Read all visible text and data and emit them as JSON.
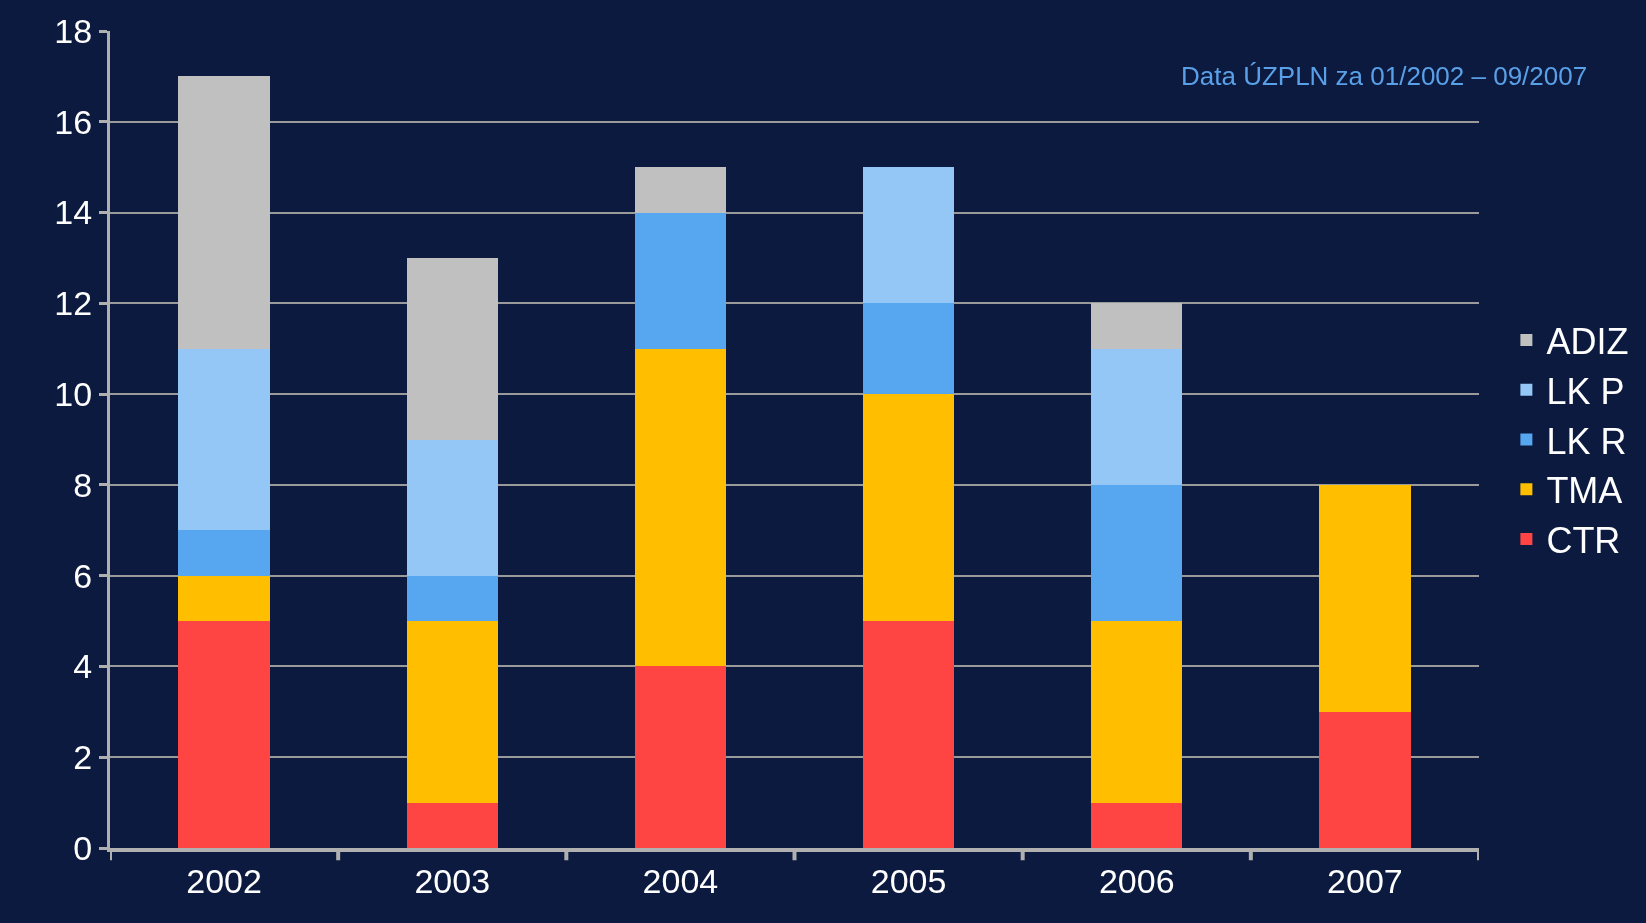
{
  "chart_data": {
    "type": "bar",
    "stacked": true,
    "categories": [
      "2002",
      "2003",
      "2004",
      "2005",
      "2006",
      "2007"
    ],
    "series": [
      {
        "name": "CTR",
        "color": "#ff4444",
        "values": [
          5,
          1,
          4,
          5,
          1,
          3
        ]
      },
      {
        "name": "TMA",
        "color": "#ffbf00",
        "values": [
          1,
          4,
          7,
          5,
          4,
          5
        ]
      },
      {
        "name": "LK R",
        "color": "#56a6f0",
        "values": [
          1,
          1,
          3,
          2,
          3,
          0
        ]
      },
      {
        "name": "LK P",
        "color": "#94c6f6",
        "values": [
          4,
          3,
          0,
          3,
          3,
          0
        ]
      },
      {
        "name": "ADIZ",
        "color": "#c0c0c0",
        "values": [
          6,
          4,
          1,
          0,
          1,
          0
        ]
      }
    ],
    "ylim": [
      0,
      18
    ],
    "yticks": [
      0,
      2,
      4,
      6,
      8,
      10,
      12,
      14,
      16,
      18
    ],
    "grid": "y",
    "legend": "right",
    "annotations": [
      "Data ÚZPLN za 01/2002 – 09/2007"
    ]
  }
}
